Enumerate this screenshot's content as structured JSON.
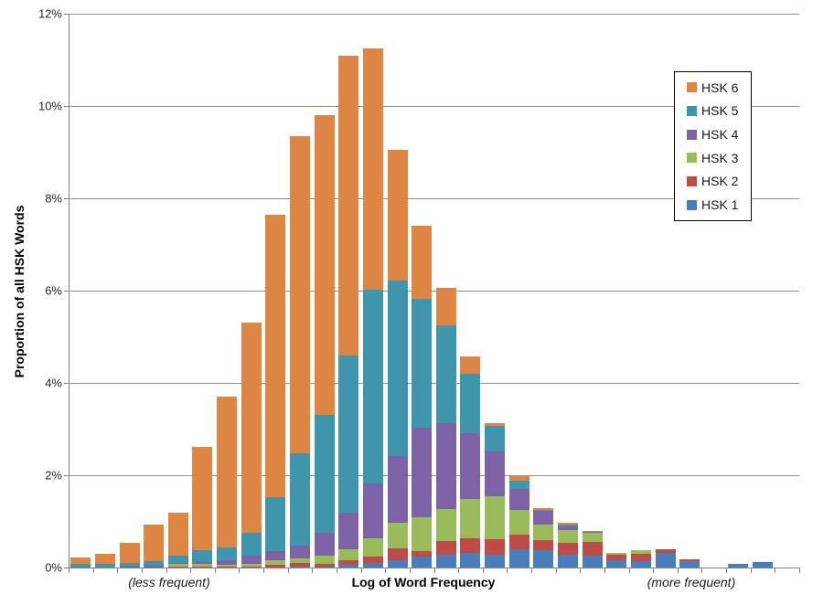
{
  "chart_data": {
    "type": "bar",
    "variant": "stacked",
    "title": "",
    "xlabel": "Log of Word Frequency",
    "ylabel": "Proportion of all HSK Words",
    "x_annotations": {
      "left": "(less frequent)",
      "right": "(more frequent)"
    },
    "ylim": [
      0,
      12
    ],
    "y_tick_step": 2,
    "y_ticks": [
      "0%",
      "2%",
      "4%",
      "6%",
      "8%",
      "10%",
      "12%"
    ],
    "x_tick_labels_visible": false,
    "x_bins": 30,
    "grid": "horizontal",
    "legend_position": "upper-right",
    "legend_order_top_to_bottom": [
      "HSK 6",
      "HSK 5",
      "HSK 4",
      "HSK 3",
      "HSK 2",
      "HSK 1"
    ],
    "stack_order_bottom_to_top": [
      "HSK 1",
      "HSK 2",
      "HSK 3",
      "HSK 4",
      "HSK 5",
      "HSK 6"
    ],
    "units": "percent",
    "series": [
      {
        "name": "HSK 1",
        "color": "#4A7EBB",
        "values": [
          0.0,
          0.0,
          0.0,
          0.0,
          0.01,
          0.01,
          0.01,
          0.01,
          0.01,
          0.02,
          0.02,
          0.06,
          0.1,
          0.16,
          0.24,
          0.28,
          0.31,
          0.28,
          0.4,
          0.37,
          0.28,
          0.25,
          0.15,
          0.14,
          0.31,
          0.13,
          0.0,
          0.08,
          0.11,
          0.0
        ]
      },
      {
        "name": "HSK 2",
        "color": "#BE4B48",
        "values": [
          0.0,
          0.0,
          0.0,
          0.0,
          0.01,
          0.02,
          0.02,
          0.02,
          0.05,
          0.08,
          0.06,
          0.1,
          0.14,
          0.26,
          0.12,
          0.3,
          0.32,
          0.33,
          0.31,
          0.23,
          0.26,
          0.31,
          0.12,
          0.16,
          0.09,
          0.05,
          0.0,
          0.0,
          0.0,
          0.0
        ]
      },
      {
        "name": "HSK 3",
        "color": "#9ABB59",
        "values": [
          0.0,
          0.0,
          0.01,
          0.01,
          0.05,
          0.04,
          0.03,
          0.05,
          0.1,
          0.1,
          0.18,
          0.24,
          0.39,
          0.55,
          0.73,
          0.69,
          0.86,
          0.93,
          0.53,
          0.34,
          0.27,
          0.2,
          0.05,
          0.08,
          0.0,
          0.0,
          0.0,
          0.0,
          0.0,
          0.0
        ]
      },
      {
        "name": "HSK 4",
        "color": "#7C63A5",
        "values": [
          0.01,
          0.01,
          0.01,
          0.03,
          0.03,
          0.05,
          0.1,
          0.18,
          0.2,
          0.28,
          0.5,
          0.79,
          1.19,
          1.44,
          1.94,
          1.86,
          1.42,
          0.97,
          0.46,
          0.29,
          0.08,
          0.01,
          0.0,
          0.0,
          0.0,
          0.0,
          0.0,
          0.0,
          0.0,
          0.0
        ]
      },
      {
        "name": "HSK 5",
        "color": "#3F96AC",
        "values": [
          0.06,
          0.07,
          0.08,
          0.1,
          0.15,
          0.26,
          0.28,
          0.5,
          1.16,
          2.0,
          2.54,
          3.41,
          4.21,
          3.81,
          2.8,
          2.12,
          1.28,
          0.55,
          0.18,
          0.02,
          0.04,
          0.0,
          0.0,
          0.0,
          0.0,
          0.0,
          0.0,
          0.0,
          0.0,
          0.0
        ]
      },
      {
        "name": "HSK 6",
        "color": "#DD8543",
        "values": [
          0.15,
          0.22,
          0.43,
          0.79,
          0.94,
          2.24,
          3.27,
          4.55,
          6.12,
          6.87,
          6.5,
          6.48,
          5.22,
          2.83,
          1.57,
          0.8,
          0.38,
          0.07,
          0.11,
          0.04,
          0.04,
          0.03,
          0.0,
          0.0,
          0.0,
          0.0,
          0.0,
          0.0,
          0.0,
          0.0
        ]
      }
    ],
    "bar_totals": [
      0.22,
      0.3,
      0.53,
      0.93,
      1.19,
      2.62,
      3.71,
      5.31,
      7.64,
      9.35,
      9.8,
      11.08,
      11.25,
      9.05,
      7.4,
      6.05,
      4.57,
      3.13,
      1.99,
      1.29,
      0.97,
      0.8,
      0.32,
      0.38,
      0.4,
      0.18,
      0.0,
      0.08,
      0.11,
      0.0
    ]
  },
  "colors": {
    "background": "#FFFFFF",
    "gridline": "#8F8F8F",
    "axis": "#808080",
    "tick_label": "#262626",
    "legend_border": "#000000"
  }
}
